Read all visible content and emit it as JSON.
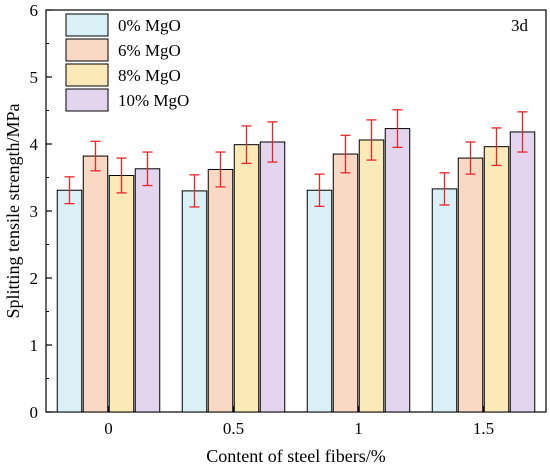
{
  "chart_data": {
    "type": "bar",
    "annotation": "3d",
    "xlabel": "Content of steel fibers/%",
    "ylabel": "Splitting tensile strength/MPa",
    "ylim": [
      0,
      6
    ],
    "yticks": [
      "0",
      "1",
      "2",
      "3",
      "4",
      "5",
      "6"
    ],
    "categories": [
      "0",
      "0.5",
      "1",
      "1.5"
    ],
    "legend_position": "top-left",
    "grid": false,
    "series": [
      {
        "name": "0% MgO",
        "color": "#d9f0f7",
        "values": [
          3.31,
          3.3,
          3.31,
          3.33
        ],
        "errors": [
          0.2,
          0.24,
          0.24,
          0.24
        ]
      },
      {
        "name": "6% MgO",
        "color": "#f9d8c4",
        "values": [
          3.82,
          3.62,
          3.85,
          3.79
        ],
        "errors": [
          0.22,
          0.26,
          0.28,
          0.24
        ]
      },
      {
        "name": "8% MgO",
        "color": "#fbeab7",
        "values": [
          3.53,
          3.99,
          4.06,
          3.96
        ],
        "errors": [
          0.26,
          0.28,
          0.3,
          0.28
        ]
      },
      {
        "name": "10% MgO",
        "color": "#e3d5ee",
        "values": [
          3.63,
          4.03,
          4.23,
          4.18
        ],
        "errors": [
          0.25,
          0.3,
          0.28,
          0.3
        ]
      }
    ],
    "error_bar_color": "#e8262a"
  }
}
